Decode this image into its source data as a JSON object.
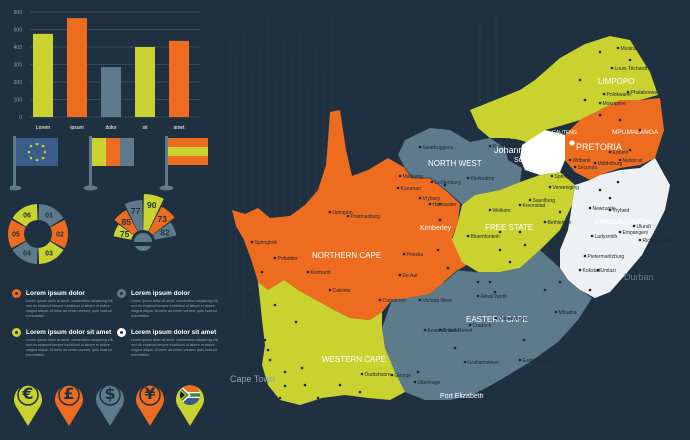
{
  "bar_chart": {
    "type": "bar",
    "categories": [
      "Lorem",
      "ipsum",
      "dolor",
      "sit",
      "amet"
    ],
    "values": [
      475,
      565,
      285,
      400,
      435
    ],
    "colors": [
      "#c9d22e",
      "#ee6c20",
      "#5e7b8e",
      "#c9d22e",
      "#ee6c20"
    ],
    "yticks": [
      "0",
      "100",
      "200",
      "300",
      "400",
      "500",
      "600"
    ],
    "ylim": [
      0,
      600
    ]
  },
  "ring": {
    "labels": [
      "01",
      "02",
      "03",
      "04",
      "05",
      "06"
    ],
    "colors": [
      "#5e7b8e",
      "#ee6c20",
      "#c9d22e",
      "#5e7b8e",
      "#ee6c20",
      "#c9d22e"
    ]
  },
  "fan": {
    "labels": [
      "75",
      "85",
      "77",
      "90",
      "73",
      "82"
    ],
    "colors": [
      "#c9d22e",
      "#ee6c20",
      "#5e7b8e",
      "#c9d22e",
      "#ee6c20",
      "#5e7b8e"
    ]
  },
  "legend": {
    "items": [
      {
        "title": "Lorem ipsum dolor",
        "color": "#ee6c20",
        "body": "Lorem ipsum dolor sit amet, consectetur adipiscing elit, sed do eiusmod tempor incididunt ut labore et dolore magna aliqua. Ut enim ad minim veniam, quis nostrud exercitation"
      },
      {
        "title": "Lorem ipsum dolor",
        "color": "#5e7b8e",
        "body": "Lorem ipsum dolor sit amet, consectetur adipiscing elit, sed do eiusmod tempor incididunt ut labore et dolore magna aliqua. Ut enim ad minim veniam, quis nostrud exercitation"
      },
      {
        "title": "Lorem ipsum dolor sit amet",
        "color": "#c9d22e",
        "body": "Lorem ipsum dolor sit amet, consectetur adipiscing elit, sed do eiusmod tempor incididunt ut labore et dolore magna aliqua. Ut enim ad minim veniam, quis nostrud exercitation"
      },
      {
        "title": "Lorem ipsum dolor sit amet",
        "color": "#ffffff",
        "body": "Lorem ipsum dolor sit amet, consectetur adipiscing elit, sed do eiusmod tempor incididunt ut labore et dolore magna aliqua. Ut enim ad minim veniam, quis nostrud exercitation"
      }
    ]
  },
  "pins": [
    {
      "icon": "euro-icon",
      "glyph": "€",
      "color": "#c9d22e"
    },
    {
      "icon": "pound-icon",
      "glyph": "£",
      "color": "#ee6c20"
    },
    {
      "icon": "dollar-icon",
      "glyph": "$",
      "color": "#5e7b8e"
    },
    {
      "icon": "yen-icon",
      "glyph": "¥",
      "color": "#ee6c20"
    },
    {
      "icon": "south-africa-flag-icon",
      "glyph": "",
      "color": "#c9d22e"
    }
  ],
  "flags": [
    {
      "icon": "eu-flag-icon"
    },
    {
      "icon": "striped-flag-icon"
    },
    {
      "icon": "banner-flag-icon"
    }
  ],
  "map": {
    "provinces": {
      "limpopo": "LIMPOPO",
      "mpumalanga": "MPUMALANGA",
      "north_west": "NORTH WEST",
      "free_state": "FREE STATE",
      "kwazulu_natal": "KWAZULU-NATAL",
      "northern_cape": "NORTHERN CAPE",
      "eastern_cape": "EASTERN CAPE",
      "western_cape": "WESTERN CAPE",
      "gauteng": "GAUTENG"
    },
    "major_cities": {
      "pretoria": "PRETORIA",
      "johannesburg": "Johannesburg",
      "soweto": "Soweto",
      "kimberley": "Kimberley",
      "durban": "Durban",
      "cape_town": "Cape Town",
      "port_elizabeth": "Port Elizabeth"
    },
    "towns": [
      "Musina",
      "Louis Trichardt",
      "Polokwane",
      "Mokopane",
      "Phalaborwa",
      "Swartruggens",
      "Mafikeng",
      "Vryburg",
      "Lichtenburg",
      "Klerksdorp",
      "Rustenburg",
      "Brits",
      "Witbank",
      "Middelburg",
      "Ermelo",
      "Nelspruit",
      "Secunda",
      "Springs",
      "Vereeniging",
      "Sasolburg",
      "Kroonstad",
      "Welkom",
      "Bethlehem",
      "Bloemfontein",
      "Ladysmith",
      "Newcastle",
      "Vryheid",
      "Ulundi",
      "Pietermaritzburg",
      "Richards Bay",
      "Empangeni",
      "Kokstad",
      "Umlazi",
      "Upington",
      "Springbok",
      "Pofadder",
      "Kenhardt",
      "De Aar",
      "Victoria West",
      "Beaufort West",
      "Calvinia",
      "Carnarvon",
      "Prieska",
      "Kuruman",
      "Postmasburg",
      "Hartswater",
      "Aliwal North",
      "Queenstown",
      "East London",
      "Mthatha",
      "Graaff-Reinet",
      "Cradock",
      "Grahamstown",
      "Uitenhage",
      "Oudtshoorn",
      "George",
      "Mossel Bay",
      "Knysna",
      "Worcester",
      "Paarl",
      "Stellenbosch",
      "Hermanus",
      "Saldanha",
      "Vredenburg",
      "Clanwilliam",
      "Malmesbury",
      "Caledon",
      "Swellendam",
      "Alexander Bay",
      "Port Nolloth",
      "Garies",
      "Bredasdorp",
      "Colesberg",
      "Middelburg",
      "Jeffreys Bay",
      "Butterworth",
      "Port Shepstone",
      "Harding",
      "Bhisho",
      "Sishen",
      "Nababeep",
      "Groblersdal",
      "Thohoyandou",
      "Lephalale",
      "Modimolle",
      "Warmbaths",
      "Tzaneen",
      "Giyani",
      "Lydenburg",
      "Barberton",
      "Standerton",
      "Volksrust",
      "Piet Retief",
      "Harrismith",
      "Parys",
      "Virginia",
      "Odendaalsrus",
      "Zastron",
      "Wepener",
      "Jagersfontein",
      "Hopetown",
      "Douglas",
      "Danielskuil",
      "Kathu"
    ]
  }
}
